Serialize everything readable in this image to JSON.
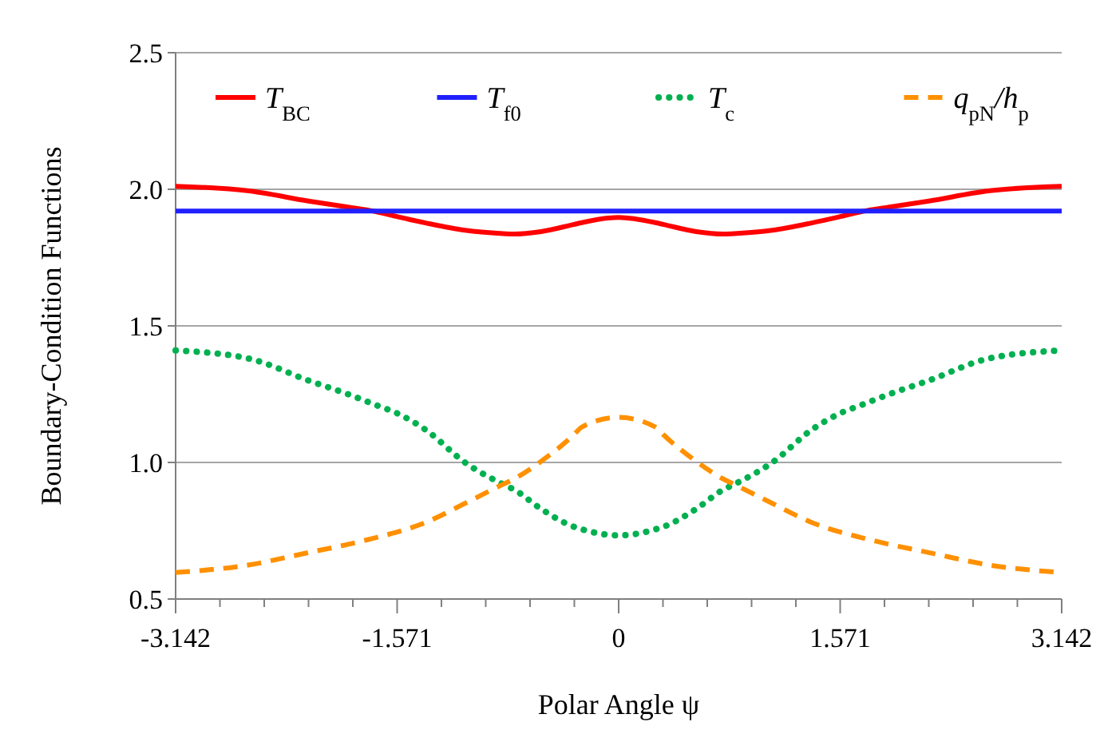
{
  "chart_data": {
    "type": "line",
    "xlabel": "Polar Angle ψ",
    "ylabel": "Boundary-Condition Functions",
    "x": [
      -3.1416,
      -2.62,
      -2.2,
      -1.92,
      -1.72,
      -1.571,
      -1.37,
      -1.09,
      -0.82,
      -0.74,
      -0.55,
      -0.32,
      -0.26,
      0,
      0.26,
      0.32,
      0.55,
      0.74,
      0.82,
      1.09,
      1.37,
      1.571,
      1.72,
      1.92,
      2.2,
      2.62,
      3.1416
    ],
    "series": [
      {
        "name": "T$_{BC}$",
        "color": "#ff0000",
        "line_style": "solid",
        "values": [
          2.011,
          1.994,
          1.957,
          1.935,
          1.918,
          1.9,
          1.877,
          1.85,
          1.838,
          1.836,
          1.845,
          1.871,
          1.878,
          1.897,
          1.878,
          1.871,
          1.845,
          1.836,
          1.838,
          1.85,
          1.877,
          1.9,
          1.918,
          1.935,
          1.957,
          1.994,
          2.011
        ]
      },
      {
        "name": "T$_{f0}$",
        "color": "#2020ff",
        "line_style": "solid",
        "values": [
          1.92,
          1.92,
          1.92,
          1.92,
          1.92,
          1.92,
          1.92,
          1.92,
          1.92,
          1.92,
          1.92,
          1.92,
          1.92,
          1.92,
          1.92,
          1.92,
          1.92,
          1.92,
          1.92,
          1.92,
          1.92,
          1.92,
          1.92,
          1.92,
          1.92,
          1.92,
          1.92
        ]
      },
      {
        "name": "T$_{c}$",
        "color": "#00b050",
        "line_style": "dotted",
        "values": [
          1.41,
          1.38,
          1.3,
          1.25,
          1.21,
          1.18,
          1.12,
          1.0,
          0.92,
          0.9,
          0.83,
          0.765,
          0.755,
          0.733,
          0.755,
          0.765,
          0.83,
          0.9,
          0.92,
          1.0,
          1.12,
          1.18,
          1.21,
          1.25,
          1.3,
          1.38,
          1.41
        ]
      },
      {
        "name": "q$_{pN}$/h$_{p}$",
        "color": "#ff9000",
        "line_style": "dashed",
        "values": [
          0.597,
          0.625,
          0.67,
          0.7,
          0.725,
          0.745,
          0.78,
          0.85,
          0.92,
          0.94,
          1.004,
          1.1,
          1.13,
          1.165,
          1.13,
          1.1,
          1.004,
          0.94,
          0.92,
          0.85,
          0.78,
          0.745,
          0.725,
          0.7,
          0.67,
          0.625,
          0.597
        ]
      }
    ],
    "xlim": [
      -3.1416,
      3.1416
    ],
    "xticks": [
      {
        "value": -3.1416,
        "label": "-3.142"
      },
      {
        "value": -2.8274,
        "label": null
      },
      {
        "value": -2.5133,
        "label": null
      },
      {
        "value": -2.1991,
        "label": null
      },
      {
        "value": -1.885,
        "label": null
      },
      {
        "value": -1.5708,
        "label": "-1.571"
      },
      {
        "value": -1.2566,
        "label": null
      },
      {
        "value": -0.9425,
        "label": null
      },
      {
        "value": -0.6283,
        "label": null
      },
      {
        "value": -0.3142,
        "label": null
      },
      0,
      {
        "value": 0.3142,
        "label": null
      },
      {
        "value": 0.6283,
        "label": null
      },
      {
        "value": 0.9425,
        "label": null
      },
      {
        "value": 1.2566,
        "label": null
      },
      {
        "value": 1.5708,
        "label": "1.571"
      },
      {
        "value": 1.885,
        "label": null
      },
      {
        "value": 2.1991,
        "label": null
      },
      {
        "value": 2.5133,
        "label": null
      },
      {
        "value": 2.8274,
        "label": null
      },
      {
        "value": 3.1416,
        "label": "3.142"
      }
    ],
    "ylim": [
      0.5,
      2.5
    ],
    "yticks": [
      {
        "value": 0.5,
        "label": "0.5"
      },
      {
        "value": 1,
        "label": "1.0"
      },
      {
        "value": 1.5,
        "label": "1.5"
      },
      {
        "value": 2,
        "label": "2.0"
      },
      {
        "value": 2.5,
        "label": "2.5"
      }
    ],
    "grid": "y",
    "legend": "top"
  }
}
